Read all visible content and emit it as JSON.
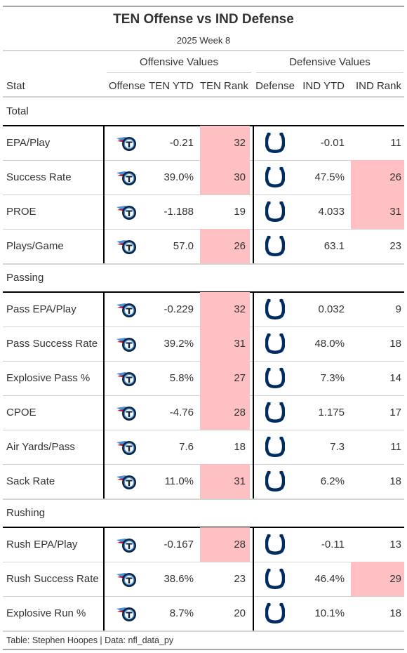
{
  "title": "TEN Offense vs IND Defense",
  "subtitle": "2025 Week 8",
  "spanners": {
    "offense": "Offensive Values",
    "defense": "Defensive Values"
  },
  "columns": {
    "stat": "Stat",
    "offense": "Offense",
    "off_ytd": "TEN YTD",
    "off_rank": "TEN Rank",
    "defense": "Defense",
    "def_ytd": "IND YTD",
    "def_rank": "IND Rank"
  },
  "colors": {
    "highlight": "#ffc0c3",
    "titans_navy": "#0c2340",
    "titans_blue": "#4b92db",
    "titans_red": "#c8102e",
    "colts_blue": "#002c5f"
  },
  "icons": {
    "offense_logo": "titans-logo-icon",
    "defense_logo": "colts-horseshoe-icon"
  },
  "footer": "Table: Stephen Hoopes | Data: nfl_data_py",
  "chart_data": {
    "type": "table",
    "title": "TEN Offense vs IND Defense",
    "subtitle": "2025 Week 8",
    "groups": [
      {
        "name": "Total",
        "rows": [
          {
            "stat": "EPA/Play",
            "off_ytd": "-0.21",
            "off_rank": "32",
            "def_ytd": "-0.01",
            "def_rank": "11",
            "off_hl": true,
            "def_hl": false
          },
          {
            "stat": "Success Rate",
            "off_ytd": "39.0%",
            "off_rank": "30",
            "def_ytd": "47.5%",
            "def_rank": "26",
            "off_hl": true,
            "def_hl": true
          },
          {
            "stat": "PROE",
            "off_ytd": "-1.188",
            "off_rank": "19",
            "def_ytd": "4.033",
            "def_rank": "31",
            "off_hl": false,
            "def_hl": true
          },
          {
            "stat": "Plays/Game",
            "off_ytd": "57.0",
            "off_rank": "26",
            "def_ytd": "63.1",
            "def_rank": "23",
            "off_hl": true,
            "def_hl": false
          }
        ]
      },
      {
        "name": "Passing",
        "rows": [
          {
            "stat": "Pass EPA/Play",
            "off_ytd": "-0.229",
            "off_rank": "32",
            "def_ytd": "0.032",
            "def_rank": "9",
            "off_hl": true,
            "def_hl": false
          },
          {
            "stat": "Pass Success Rate",
            "off_ytd": "39.2%",
            "off_rank": "31",
            "def_ytd": "48.0%",
            "def_rank": "18",
            "off_hl": true,
            "def_hl": false
          },
          {
            "stat": "Explosive Pass %",
            "off_ytd": "5.8%",
            "off_rank": "27",
            "def_ytd": "7.3%",
            "def_rank": "14",
            "off_hl": true,
            "def_hl": false
          },
          {
            "stat": "CPOE",
            "off_ytd": "-4.76",
            "off_rank": "28",
            "def_ytd": "1.175",
            "def_rank": "17",
            "off_hl": true,
            "def_hl": false
          },
          {
            "stat": "Air Yards/Pass",
            "off_ytd": "7.6",
            "off_rank": "18",
            "def_ytd": "7.3",
            "def_rank": "11",
            "off_hl": false,
            "def_hl": false
          },
          {
            "stat": "Sack Rate",
            "off_ytd": "11.0%",
            "off_rank": "31",
            "def_ytd": "6.2%",
            "def_rank": "18",
            "off_hl": true,
            "def_hl": false
          }
        ]
      },
      {
        "name": "Rushing",
        "rows": [
          {
            "stat": "Rush EPA/Play",
            "off_ytd": "-0.167",
            "off_rank": "28",
            "def_ytd": "-0.11",
            "def_rank": "13",
            "off_hl": true,
            "def_hl": false
          },
          {
            "stat": "Rush Success Rate",
            "off_ytd": "38.6%",
            "off_rank": "23",
            "def_ytd": "46.4%",
            "def_rank": "29",
            "off_hl": false,
            "def_hl": true
          },
          {
            "stat": "Explosive Run %",
            "off_ytd": "8.7%",
            "off_rank": "20",
            "def_ytd": "10.1%",
            "def_rank": "18",
            "off_hl": false,
            "def_hl": false
          }
        ]
      }
    ]
  }
}
